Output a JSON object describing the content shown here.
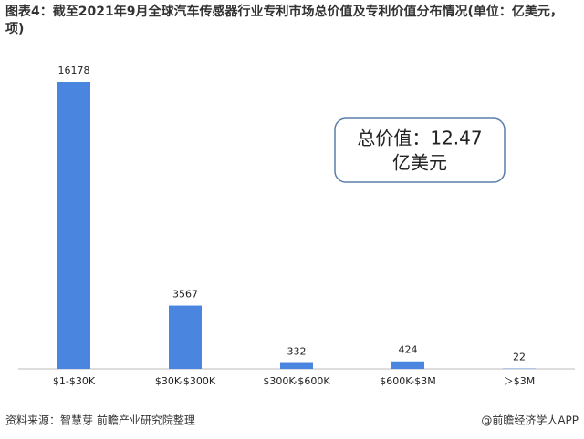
{
  "chart_data": {
    "type": "bar",
    "title": "图表4：截至2021年9月全球汽车传感器行业专利市场总价值及专利价值分布情况(单位：亿美元，项)",
    "categories": [
      "$1-$30K",
      "$30K-$300K",
      "$300K-$600K",
      "$600K-$3M",
      "＞$3M"
    ],
    "values": [
      16178,
      3567,
      332,
      424,
      22
    ],
    "color": "#4a86e0",
    "annotation": [
      "总价值：12.47",
      "亿美元"
    ],
    "source": "资料来源：智慧芽 前瞻产业研究院整理",
    "credit": "@前瞻经济学人APP"
  }
}
